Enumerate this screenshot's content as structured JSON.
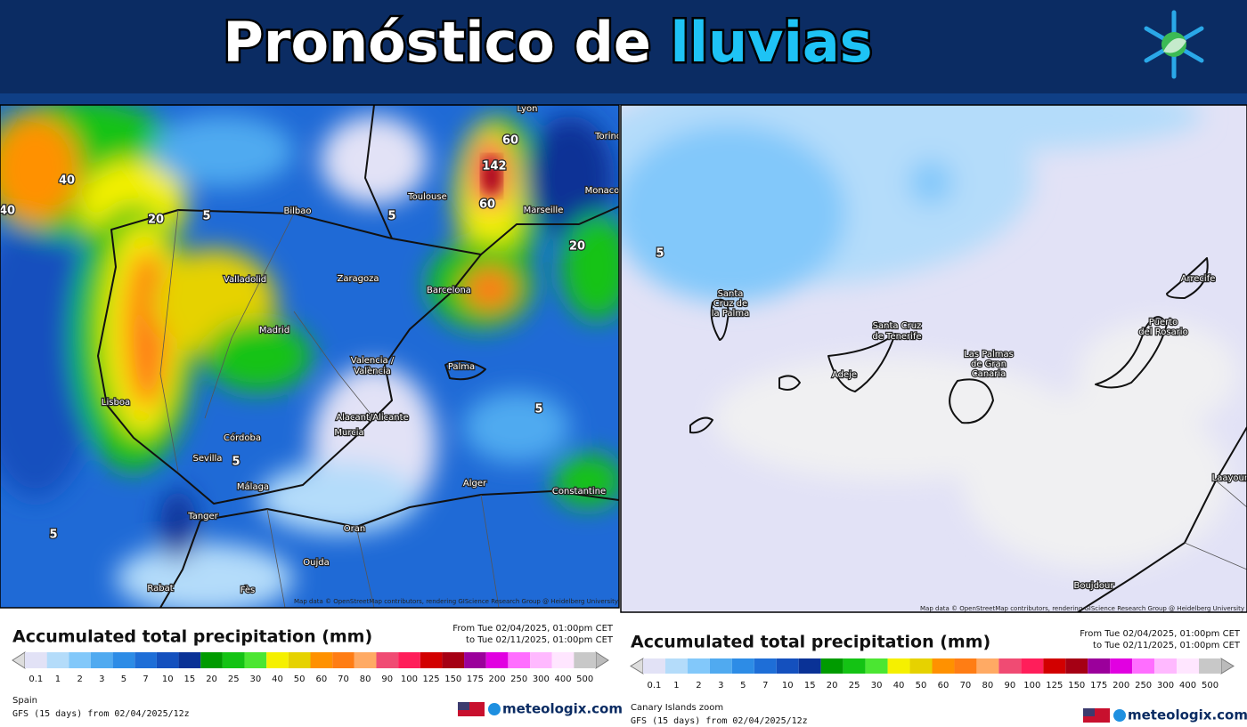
{
  "header": {
    "title_part1": "Pronóstico de",
    "title_part2": "lluvias"
  },
  "scale_colors": [
    "#e2e2f6",
    "#b4dcfa",
    "#82c8fa",
    "#50aaf0",
    "#2d8ce6",
    "#1e6ed7",
    "#1450be",
    "#0a3296",
    "#009b00",
    "#14c314",
    "#4be632",
    "#f5f000",
    "#e6d200",
    "#ff9100",
    "#ff7d14",
    "#ffaa64",
    "#f04b73",
    "#ff1e5a",
    "#d20000",
    "#a50014",
    "#9b009b",
    "#e100e1",
    "#ff6eff",
    "#ffb9ff",
    "#ffe6ff",
    "#c8c8c8"
  ],
  "panels": [
    {
      "city_labels": [
        "Lyon",
        "Torino",
        "Monaco",
        "Toulouse",
        "Marseille",
        "Bilbao",
        "Valladolid",
        "Zaragoza",
        "Barcelona",
        "Madrid",
        "Valencia /",
        "València",
        "Palma",
        "Lisboa",
        "Alacant/Alicante",
        "Murcia",
        "Córdoba",
        "Sevilla",
        "Málaga",
        "Alger",
        "Constantine",
        "Tanger",
        "Oran",
        "Oujda",
        "Rabat",
        "Fès"
      ],
      "contour_labels": [
        60,
        142,
        60,
        5,
        20,
        5,
        40,
        40,
        20,
        5,
        5,
        5
      ],
      "attribution": "Map data © OpenStreetMap contributors, rendering GIScience Research Group @ Heidelberg University",
      "legend_title": "Accumulated total precipitation (mm)",
      "date_from": "From Tue 02/04/2025, 01:00pm CET",
      "date_to": "to Tue 02/11/2025, 01:00pm CET",
      "scale_labels": [
        "0.1",
        "1",
        "2",
        "3",
        "5",
        "7",
        "10",
        "15",
        "20",
        "25",
        "30",
        "40",
        "50",
        "60",
        "70",
        "80",
        "90",
        "100",
        "125",
        "150",
        "175",
        "200",
        "250",
        "300",
        "400",
        "500"
      ],
      "region": "Spain",
      "model": "GFS (15 days) from 02/04/2025/12z",
      "brand": "meteologix.com"
    },
    {
      "city_labels": [
        "Santa",
        "Cruz de",
        "la Palma",
        "Santa Cruz",
        "de Tenerife",
        "Adeje",
        "Las Palmas",
        "de Gran",
        "Canaria",
        "Puerto",
        "del Rosario",
        "Arrecife",
        "Laayoune",
        "Boujdour"
      ],
      "contour_labels": [
        5
      ],
      "attribution": "Map data © OpenStreetMap contributors, rendering GIScience Research Group @ Heidelberg University",
      "legend_title": "Accumulated total precipitation (mm)",
      "date_from": "From Tue 02/04/2025, 01:00pm CET",
      "date_to": "to Tue 02/11/2025, 01:00pm CET",
      "scale_labels": [
        "0.1",
        "1",
        "2",
        "3",
        "5",
        "7",
        "10",
        "15",
        "20",
        "25",
        "30",
        "40",
        "50",
        "60",
        "70",
        "80",
        "90",
        "100",
        "125",
        "150",
        "175",
        "200",
        "250",
        "300",
        "400",
        "500"
      ],
      "region": "Canary Islands zoom",
      "model": "GFS (15 days) from 02/04/2025/12z",
      "brand": "meteologix.com"
    }
  ]
}
